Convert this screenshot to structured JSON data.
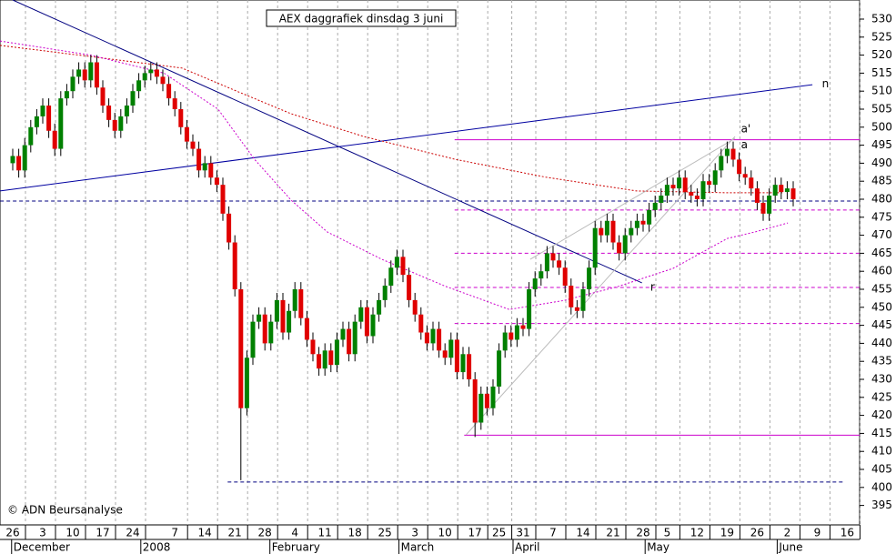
{
  "chart_data": {
    "type": "candlestick",
    "title": "AEX daggrafiek dinsdag 3 juni",
    "credit": "© ADN Beursanalyse",
    "categories": [
      "26",
      null,
      null,
      null,
      null,
      "3",
      null,
      null,
      null,
      null,
      "10",
      null,
      null,
      null,
      null,
      "17",
      null,
      null,
      null,
      null,
      "24",
      null,
      null,
      null,
      null,
      null,
      null,
      "7",
      null,
      null,
      null,
      null,
      "14",
      null,
      null,
      null,
      null,
      "21",
      null,
      null,
      null,
      null,
      "28",
      null,
      null,
      null,
      null,
      "4",
      null,
      null,
      null,
      null,
      "11",
      null,
      null,
      null,
      null,
      "18",
      null,
      null,
      null,
      null,
      "25",
      null,
      null,
      null,
      null,
      "3",
      null,
      null,
      null,
      null,
      "10",
      null,
      null,
      null,
      null,
      "17",
      null,
      null,
      null,
      "25",
      null,
      null,
      null,
      "31",
      null,
      null,
      null,
      null,
      "7",
      null,
      null,
      null,
      null,
      "14",
      null,
      null,
      null,
      null,
      "21",
      null,
      null,
      null,
      null,
      "28",
      null,
      null,
      null,
      "5",
      null,
      null,
      null,
      null,
      "12",
      null,
      null,
      null,
      null,
      "19",
      null,
      null,
      null,
      null,
      "26",
      null,
      null,
      null,
      null,
      "2",
      null,
      null,
      null,
      null,
      "9",
      null,
      null,
      null,
      null,
      "16",
      null
    ],
    "months": [
      "December",
      "2008",
      "February",
      "March",
      "April",
      "May",
      "June"
    ],
    "open": [
      490,
      492,
      488,
      495,
      500,
      503,
      506,
      499,
      494,
      508,
      510,
      514,
      516,
      513,
      518,
      511,
      506,
      502,
      499,
      503,
      506,
      510,
      513,
      515,
      516,
      514,
      512,
      508,
      505,
      500,
      496,
      494,
      488,
      490,
      486,
      484,
      476,
      468,
      455,
      422,
      436,
      446,
      448,
      440,
      446,
      452,
      443,
      449,
      455,
      447,
      441,
      437,
      433,
      438,
      434,
      441,
      444,
      437,
      446,
      450,
      442,
      448,
      452,
      456,
      461,
      464,
      459,
      452,
      448,
      443,
      440,
      444,
      438,
      436,
      441,
      432,
      437,
      430,
      418,
      426,
      422,
      428,
      438,
      443,
      441,
      445,
      444,
      455,
      458,
      460,
      465,
      463,
      461,
      456,
      450,
      449,
      455,
      461,
      472,
      470,
      474,
      468,
      465,
      470,
      472,
      474,
      473,
      477,
      479,
      481,
      484,
      483,
      486,
      482,
      481,
      480,
      485,
      484,
      488,
      492,
      494,
      491,
      487,
      486,
      483,
      479,
      476,
      481,
      484,
      482,
      483,
      null,
      null,
      null,
      null,
      null,
      null,
      null,
      null,
      null,
      null
    ],
    "high": [
      494,
      494,
      497,
      502,
      505,
      508,
      508,
      501,
      510,
      512,
      516,
      518,
      518,
      520,
      520,
      513,
      508,
      504,
      505,
      508,
      512,
      515,
      517,
      518,
      518,
      516,
      514,
      510,
      507,
      502,
      498,
      496,
      492,
      492,
      488,
      486,
      478,
      470,
      457,
      438,
      448,
      450,
      450,
      448,
      454,
      454,
      451,
      457,
      457,
      449,
      443,
      439,
      440,
      440,
      443,
      446,
      446,
      448,
      452,
      452,
      450,
      454,
      458,
      463,
      466,
      466,
      461,
      454,
      450,
      445,
      446,
      446,
      440,
      443,
      443,
      439,
      439,
      432,
      428,
      428,
      430,
      440,
      445,
      445,
      447,
      447,
      457,
      460,
      462,
      467,
      467,
      465,
      463,
      458,
      452,
      457,
      463,
      474,
      474,
      476,
      476,
      470,
      472,
      474,
      476,
      476,
      479,
      481,
      483,
      486,
      486,
      488,
      488,
      484,
      483,
      487,
      487,
      490,
      494,
      496,
      496,
      493,
      489,
      488,
      485,
      481,
      483,
      486,
      486,
      485,
      485,
      null,
      null,
      null,
      null,
      null,
      null,
      null,
      null,
      null,
      null
    ],
    "low": [
      488,
      486,
      486,
      493,
      498,
      501,
      497,
      492,
      492,
      506,
      508,
      512,
      511,
      511,
      509,
      504,
      500,
      497,
      497,
      501,
      504,
      508,
      511,
      513,
      512,
      510,
      506,
      503,
      498,
      494,
      492,
      486,
      486,
      484,
      482,
      474,
      466,
      453,
      402,
      420,
      434,
      444,
      438,
      438,
      444,
      441,
      441,
      447,
      445,
      439,
      435,
      431,
      431,
      432,
      432,
      439,
      435,
      435,
      444,
      440,
      440,
      446,
      450,
      454,
      459,
      457,
      450,
      446,
      441,
      438,
      438,
      436,
      434,
      434,
      430,
      430,
      428,
      414,
      416,
      420,
      420,
      426,
      436,
      439,
      439,
      442,
      442,
      453,
      456,
      458,
      461,
      459,
      454,
      448,
      447,
      447,
      453,
      459,
      468,
      468,
      466,
      463,
      463,
      468,
      470,
      471,
      471,
      475,
      477,
      479,
      481,
      481,
      480,
      479,
      478,
      478,
      482,
      482,
      486,
      490,
      489,
      485,
      484,
      481,
      477,
      474,
      474,
      479,
      480,
      480,
      478,
      null,
      null,
      null,
      null,
      null,
      null,
      null,
      null,
      null,
      null
    ],
    "close": [
      492,
      488,
      495,
      500,
      503,
      506,
      499,
      494,
      508,
      510,
      514,
      516,
      513,
      518,
      511,
      506,
      502,
      499,
      503,
      506,
      510,
      513,
      515,
      516,
      514,
      512,
      508,
      505,
      500,
      496,
      494,
      488,
      490,
      486,
      484,
      476,
      468,
      455,
      422,
      436,
      446,
      448,
      440,
      446,
      452,
      443,
      449,
      455,
      447,
      441,
      437,
      433,
      438,
      434,
      441,
      444,
      437,
      446,
      450,
      442,
      448,
      452,
      456,
      461,
      464,
      459,
      452,
      448,
      443,
      440,
      444,
      438,
      436,
      441,
      432,
      437,
      430,
      418,
      426,
      422,
      428,
      438,
      443,
      441,
      445,
      444,
      455,
      458,
      460,
      465,
      463,
      461,
      456,
      450,
      449,
      455,
      461,
      472,
      470,
      474,
      468,
      465,
      470,
      472,
      474,
      473,
      477,
      479,
      481,
      484,
      483,
      486,
      482,
      481,
      480,
      485,
      484,
      488,
      492,
      494,
      491,
      487,
      486,
      483,
      479,
      476,
      481,
      484,
      482,
      483,
      480,
      null,
      null,
      null,
      null,
      null,
      null,
      null,
      null,
      null,
      null
    ],
    "up_color": "#008000",
    "down_color": "#e00000",
    "ylim": [
      389.6,
      535.3
    ],
    "yticks": [
      395,
      400,
      405,
      410,
      415,
      420,
      425,
      430,
      435,
      440,
      445,
      450,
      455,
      460,
      465,
      470,
      475,
      480,
      485,
      490,
      495,
      500,
      505,
      510,
      515,
      520,
      525,
      530
    ],
    "levels": [
      {
        "value": 496.5,
        "x": [
          73.6,
          141.1
        ],
        "color": "#cc00cc",
        "dash": false
      },
      {
        "value": 479.5,
        "x": [
          -2.1,
          141.1
        ],
        "color": "#000080",
        "dash": true
      },
      {
        "value": 477,
        "x": [
          73.6,
          141.1
        ],
        "color": "#cc00cc",
        "dash": true
      },
      {
        "value": 465,
        "x": [
          73.6,
          141.1
        ],
        "color": "#cc00cc",
        "dash": true
      },
      {
        "value": 455.5,
        "x": [
          73.6,
          141.1
        ],
        "color": "#cc00cc",
        "dash": true
      },
      {
        "value": 445.5,
        "x": [
          73.6,
          141.1
        ],
        "color": "#cc00cc",
        "dash": true
      },
      {
        "value": 414.5,
        "x": [
          75.2,
          141.1
        ],
        "color": "#cc00cc",
        "dash": false
      },
      {
        "value": 401.5,
        "x": [
          35.8,
          138.5
        ],
        "color": "#000080",
        "dash": true
      }
    ],
    "lines": [
      {
        "x": [
          0,
          104.8
        ],
        "values": [
          535.3,
          456.8
        ],
        "color": "#000080",
        "dash": false
      },
      {
        "x": [
          -2.1,
          133.2
        ],
        "values": [
          482.3,
          511.8
        ],
        "color": "#0000a0",
        "dash": false
      },
      {
        "x": [
          75.5,
          120.3
        ],
        "values": [
          414.6,
          497.4
        ],
        "color": "#bbbbbb",
        "dash": false
      },
      {
        "x": [
          86.2,
          120.3
        ],
        "values": [
          463.3,
          496.9
        ],
        "color": "#bbbbbb",
        "dash": false
      },
      {
        "x": [
          -2.1,
          13,
          28.2,
          37.3,
          46.4,
          58.5,
          73.6,
          88.8,
          103.9,
          119,
          128.2
        ],
        "values": [
          522.7,
          519.6,
          516.4,
          510,
          503.7,
          497.4,
          491.1,
          486.1,
          482.3,
          481.8,
          481.8
        ],
        "color": "#cc0000",
        "dash": true
      },
      {
        "x": [
          -2.1,
          13,
          25.2,
          34.2,
          40.3,
          46.4,
          52.4,
          61.5,
          72.1,
          82.7,
          91.8,
          100.9,
          110,
          119,
          123.6,
          129.1
        ],
        "values": [
          523.9,
          520,
          515,
          505,
          491,
          479.7,
          470.9,
          463.3,
          455.8,
          449.4,
          451.9,
          455.8,
          460.8,
          469.1,
          470.9,
          473.4
        ],
        "color": "#cc00cc",
        "dash": true
      }
    ],
    "annotations": [
      {
        "text": "n",
        "x": 134.8,
        "value": 512
      },
      {
        "text": "r",
        "x": 106.2,
        "value": 455.5
      },
      {
        "text": "a'",
        "x": 121.3,
        "value": 499.5
      },
      {
        "text": "a",
        "x": 121.3,
        "value": 495
      }
    ]
  }
}
